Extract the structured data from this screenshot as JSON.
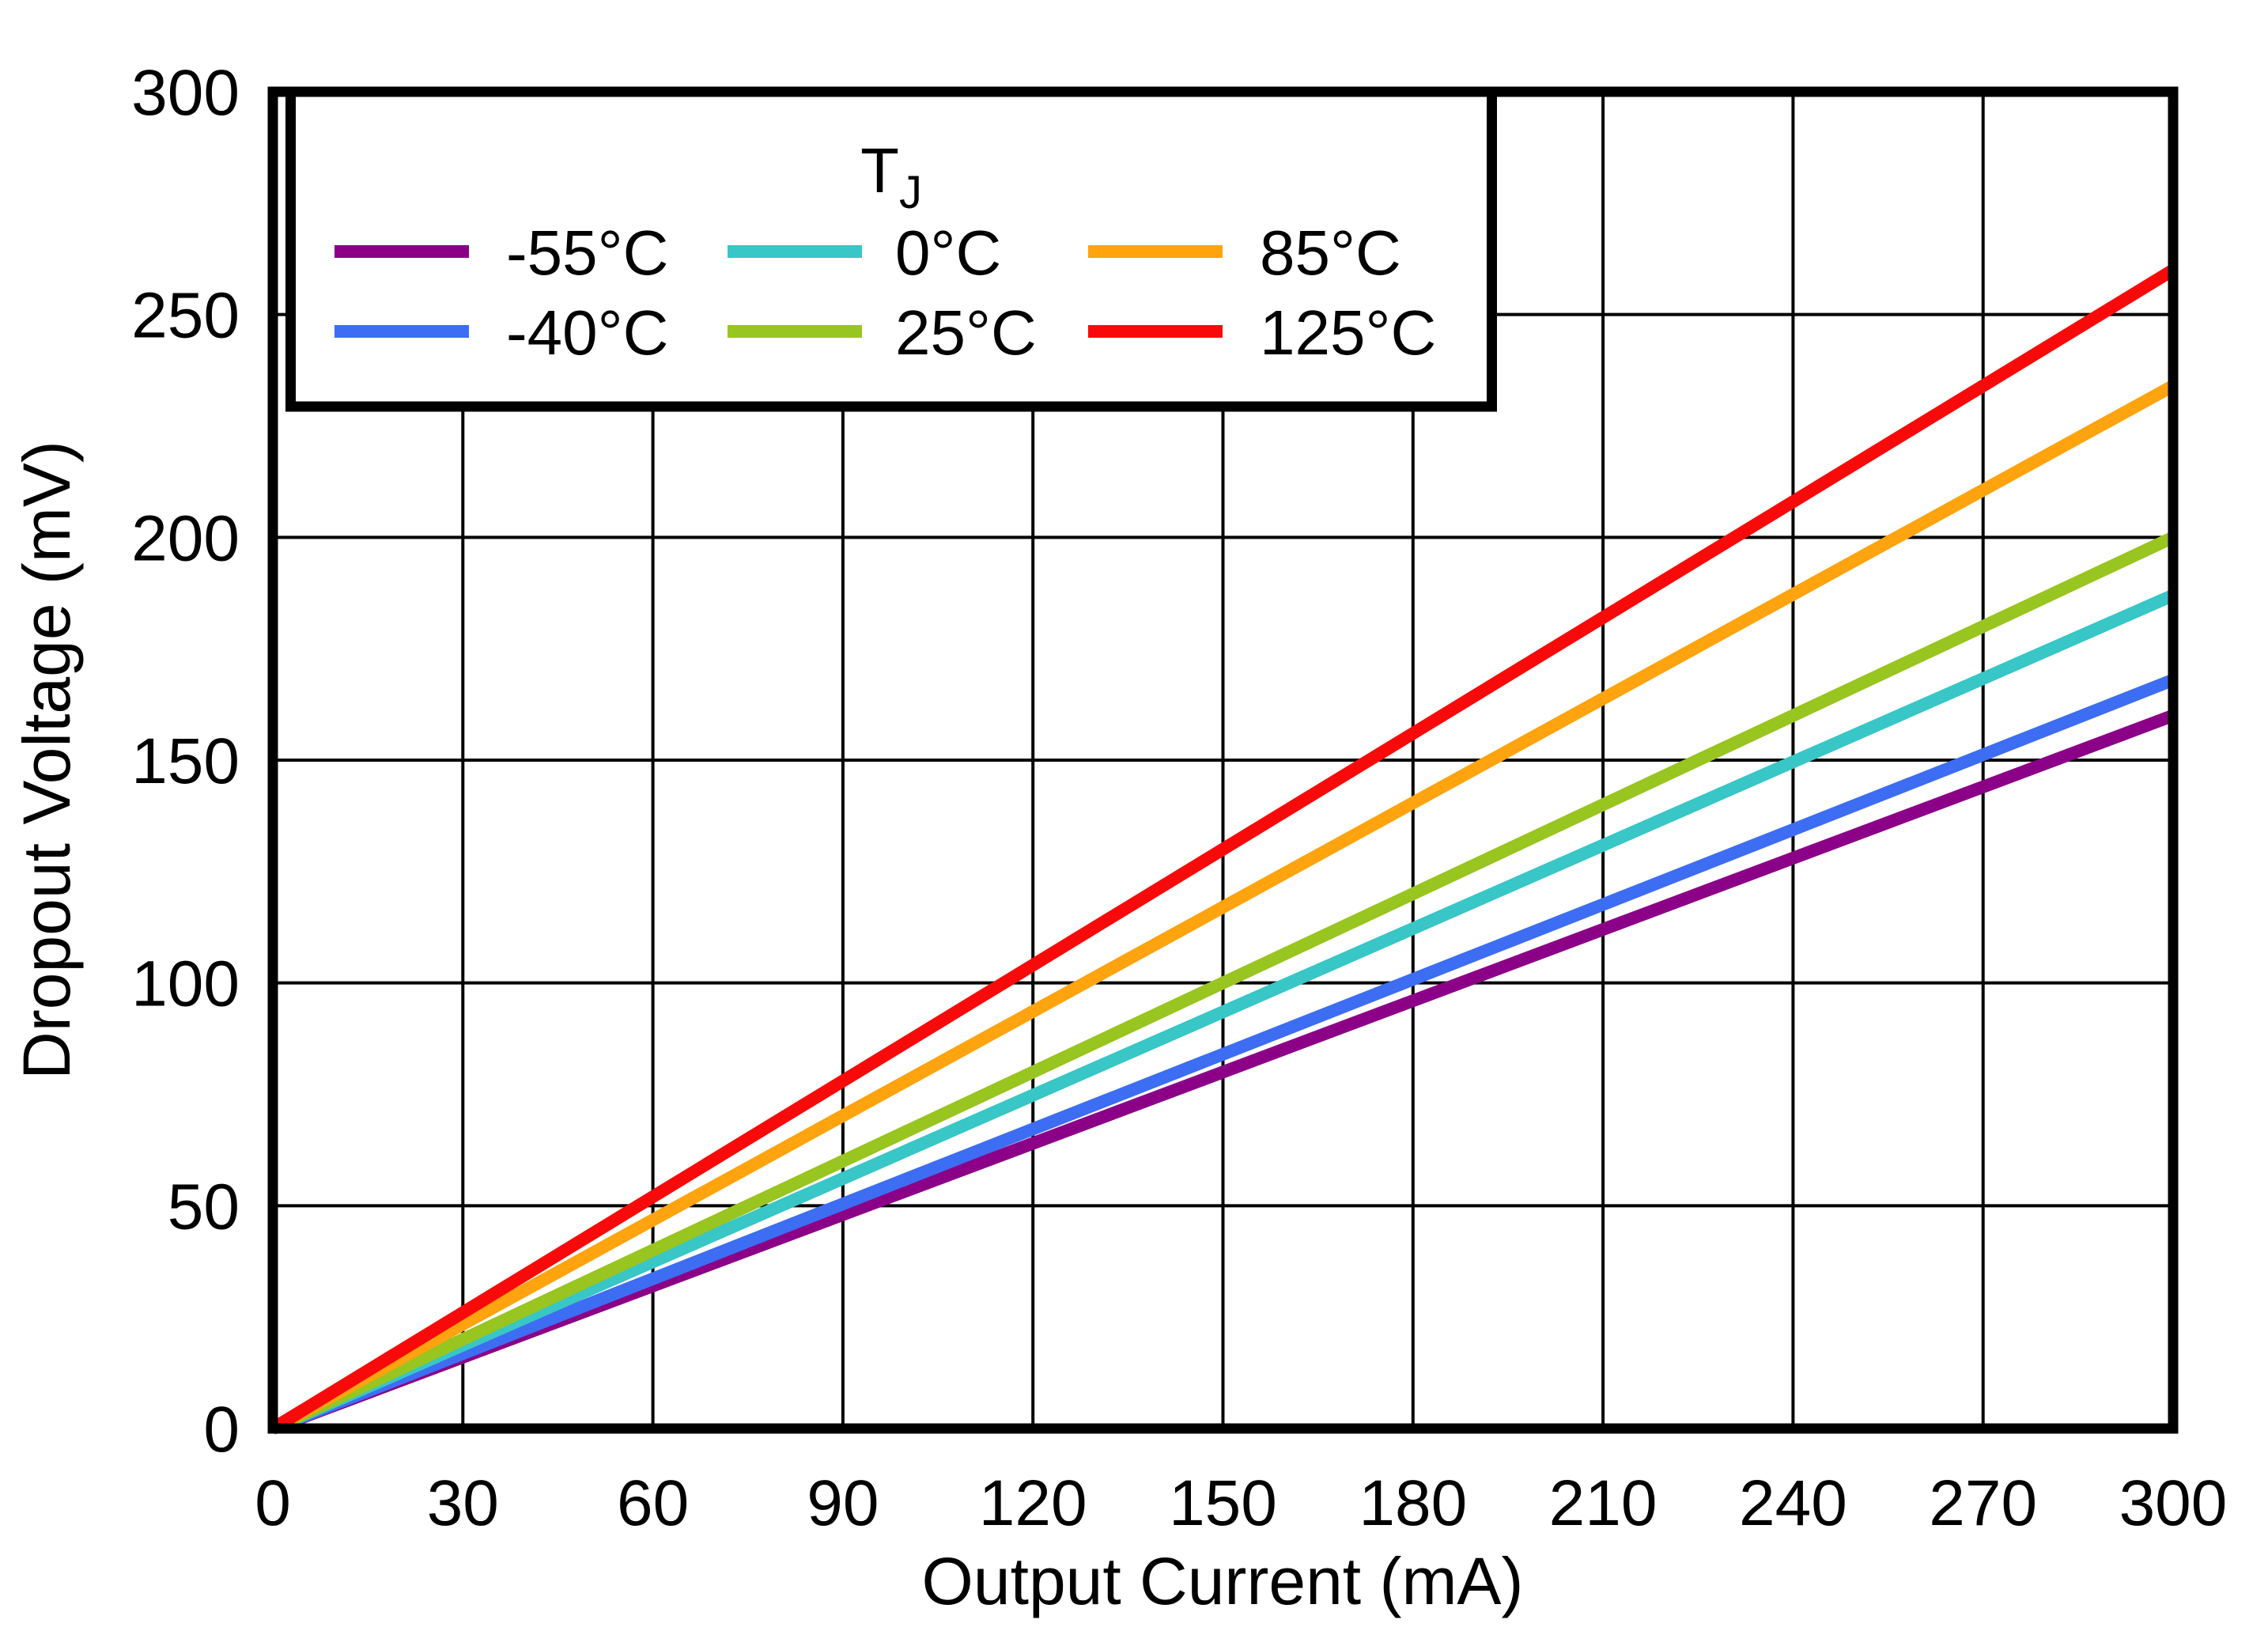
{
  "figure": {
    "background": "#FFFFFF",
    "axis_color": "#000000",
    "grid_color": "#000000"
  },
  "chart_data": {
    "type": "line",
    "title": "",
    "xlabel": "Output Current (mA)",
    "ylabel": "Dropout Voltage (mV)",
    "xlim": [
      0,
      300
    ],
    "ylim": [
      0,
      300
    ],
    "x_ticks": [
      0,
      30,
      60,
      90,
      120,
      150,
      180,
      210,
      240,
      270,
      300
    ],
    "y_ticks": [
      0,
      50,
      100,
      150,
      200,
      250,
      300
    ],
    "grid": true,
    "legend": {
      "title_main": "T",
      "title_sub": "J",
      "position": "top-left",
      "layout_columns": [
        [
          "-55°C",
          "-40°C"
        ],
        [
          "0°C",
          "25°C"
        ],
        [
          "85°C",
          "125°C"
        ]
      ]
    },
    "series": [
      {
        "name": "-55°C",
        "color": "#8B0087",
        "x": [
          0,
          300
        ],
        "y": [
          0,
          160
        ]
      },
      {
        "name": "-40°C",
        "color": "#3D6DF2",
        "x": [
          0,
          300
        ],
        "y": [
          0,
          168
        ]
      },
      {
        "name": "0°C",
        "color": "#38C6C6",
        "x": [
          0,
          300
        ],
        "y": [
          0,
          187
        ]
      },
      {
        "name": "25°C",
        "color": "#98C51F",
        "x": [
          0,
          300
        ],
        "y": [
          0,
          200
        ]
      },
      {
        "name": "85°C",
        "color": "#FFA30E",
        "x": [
          0,
          300
        ],
        "y": [
          0,
          234
        ]
      },
      {
        "name": "125°C",
        "color": "#F90A0A",
        "x": [
          0,
          300
        ],
        "y": [
          0,
          260
        ]
      }
    ]
  }
}
